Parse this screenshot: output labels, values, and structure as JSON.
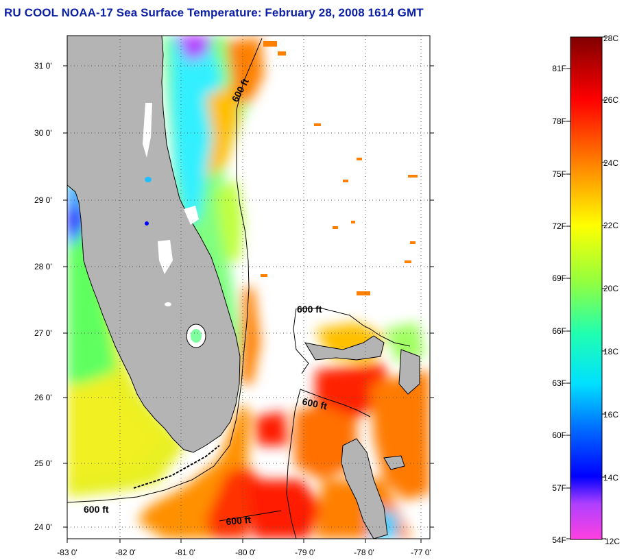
{
  "header": {
    "title": "RU COOL  NOAA-17  Sea Surface Temperature:  February 28, 2008 1614 GMT"
  },
  "map": {
    "lat_labels": [
      "31 0'",
      "30 0'",
      "29 0'",
      "28 0'",
      "27 0'",
      "26 0'",
      "25 0'",
      "24 0'"
    ],
    "lon_labels": [
      "-83 0'",
      "-82 0'",
      "-81 0'",
      "-80 0'",
      "-79 0'",
      "-78 0'",
      "-77 0'"
    ],
    "contour_labels": [
      "600 ft",
      "600 ft",
      "600 ft",
      "600 ft",
      "600 ft"
    ],
    "land_color": "#b4b4b4",
    "cloud_color": "#ffffff"
  },
  "colorbar": {
    "celsius_labels": [
      "28C",
      "26C",
      "24C",
      "22C",
      "20C",
      "18C",
      "16C",
      "14C",
      "12C"
    ],
    "fahrenheit_labels": [
      "81F",
      "78F",
      "75F",
      "72F",
      "69F",
      "66F",
      "63F",
      "60F",
      "57F",
      "54F"
    ],
    "colors": [
      "#800000",
      "#ff0000",
      "#ff8000",
      "#ffff00",
      "#40ff80",
      "#00ffff",
      "#0060ff",
      "#0000ff",
      "#ff00ff"
    ]
  }
}
